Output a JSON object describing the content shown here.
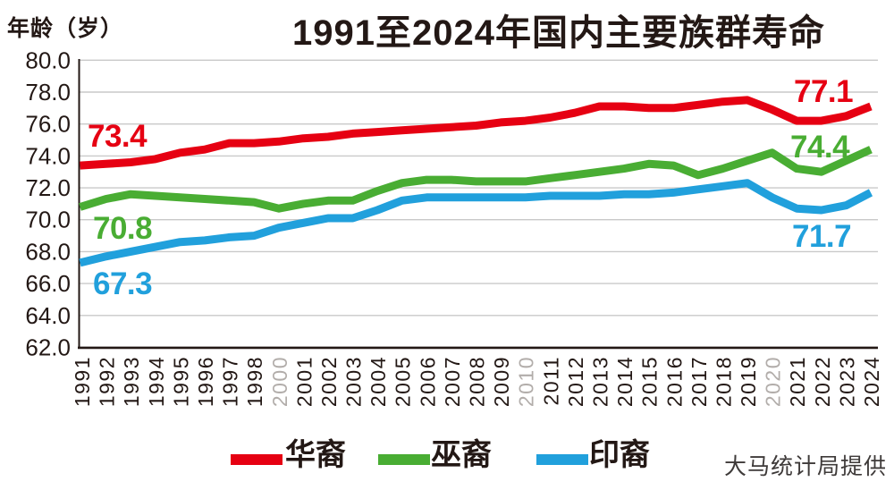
{
  "chart_data": {
    "type": "line",
    "title": "1991至2024年国内主要族群寿命",
    "ylabel": "年龄（岁）",
    "xlabel": "",
    "x": [
      "1991",
      "1992",
      "1993",
      "1994",
      "1995",
      "1996",
      "1997",
      "1998",
      "2000",
      "2001",
      "2002",
      "2003",
      "2004",
      "2005",
      "2006",
      "2007",
      "2008",
      "2009",
      "2010",
      "2011",
      "2012",
      "2013",
      "2014",
      "2015",
      "2016",
      "2017",
      "2018",
      "2019",
      "2020",
      "2021",
      "2022",
      "2023",
      "2024"
    ],
    "gray_x_labels": [
      "2000",
      "2010",
      "2020"
    ],
    "series": [
      {
        "name": "华裔",
        "color": "#e60012",
        "values": [
          73.4,
          73.5,
          73.6,
          73.8,
          74.2,
          74.4,
          74.8,
          74.8,
          74.9,
          75.1,
          75.2,
          75.4,
          75.5,
          75.6,
          75.7,
          75.8,
          75.9,
          76.1,
          76.2,
          76.4,
          76.7,
          77.1,
          77.1,
          77.0,
          77.0,
          77.2,
          77.4,
          77.5,
          76.9,
          76.2,
          76.2,
          76.5,
          77.1
        ]
      },
      {
        "name": "巫裔",
        "color": "#49ad33",
        "values": [
          70.8,
          71.3,
          71.6,
          71.5,
          71.4,
          71.3,
          71.2,
          71.1,
          70.7,
          71.0,
          71.2,
          71.2,
          71.8,
          72.3,
          72.5,
          72.5,
          72.4,
          72.4,
          72.4,
          72.6,
          72.8,
          73.0,
          73.2,
          73.5,
          73.4,
          72.8,
          73.2,
          73.7,
          74.2,
          73.2,
          73.0,
          73.7,
          74.4
        ]
      },
      {
        "name": "印裔",
        "color": "#21a0dc",
        "values": [
          67.3,
          67.7,
          68.0,
          68.3,
          68.6,
          68.7,
          68.9,
          69.0,
          69.5,
          69.8,
          70.1,
          70.1,
          70.6,
          71.2,
          71.4,
          71.4,
          71.4,
          71.4,
          71.4,
          71.5,
          71.5,
          71.5,
          71.6,
          71.6,
          71.7,
          71.9,
          72.1,
          72.3,
          71.4,
          70.7,
          70.6,
          70.9,
          71.7
        ]
      }
    ],
    "ylim": [
      62,
      80
    ],
    "ytick_step": 2,
    "yticks": [
      "80.0",
      "78.0",
      "76.0",
      "74.0",
      "72.0",
      "70.0",
      "68.0",
      "66.0",
      "64.0",
      "62.0"
    ],
    "grid": true,
    "legend_position": "bottom",
    "grid_color": "#c9c9c9",
    "axis_color": "#231815",
    "axis_text_color": "#231815",
    "gray_label_color": "#b2adaa",
    "annotations": [
      {
        "name": "华裔",
        "start": "73.4",
        "end": "77.1"
      },
      {
        "name": "巫裔",
        "start": "70.8",
        "end": "74.4"
      },
      {
        "name": "印裔",
        "start": "67.3",
        "end": "71.7"
      }
    ]
  },
  "source": "大马统计局提供"
}
